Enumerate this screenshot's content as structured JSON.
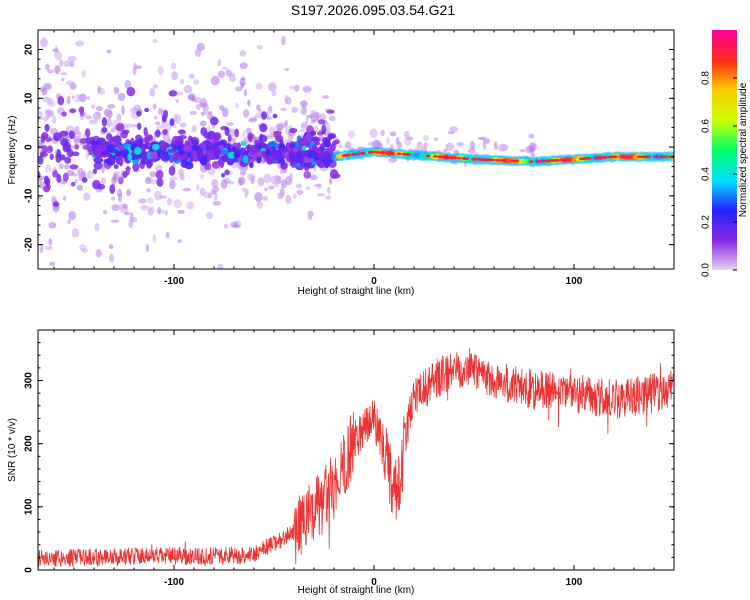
{
  "figure": {
    "title": "S197.2026.095.03.54.G21"
  },
  "chart_data": [
    {
      "type": "heatmap",
      "title": "S197.2026.095.03.54.G21",
      "xlabel": "Height of straight line (km)",
      "ylabel": "Frequency (Hz)",
      "xlim": [
        -168,
        150
      ],
      "ylim": [
        -25,
        24
      ],
      "xticks": [
        -100,
        0,
        100
      ],
      "xtick_labels": [
        "-100",
        "0",
        "100"
      ],
      "yticks": [
        20,
        10,
        0,
        -10,
        -20
      ],
      "ytick_labels": [
        "20",
        "10",
        "0",
        "-10",
        "-20"
      ],
      "colorbar": {
        "label": "Normalized spectral amplitude",
        "range": [
          0,
          1
        ],
        "ticks": [
          0.0,
          0.2,
          0.4,
          0.6,
          0.8
        ],
        "tick_labels": [
          "0.0",
          "0.2",
          "0.4",
          "0.6",
          "0.8"
        ],
        "colors": [
          "#e6d2f5",
          "#8a2be2",
          "#2222ff",
          "#00e0ff",
          "#00ff66",
          "#ccff00",
          "#ffcc00",
          "#ff2a1a",
          "#ff0099"
        ]
      },
      "ridge": {
        "description_points_x": [
          -160,
          -120,
          -60,
          -20,
          0,
          50,
          80,
          120,
          150
        ],
        "frequency_hz": [
          0,
          -1,
          -1,
          -2,
          -1,
          -2.5,
          -3,
          -2,
          -2
        ]
      }
    },
    {
      "type": "line",
      "xlabel": "Height of straight line (km)",
      "ylabel": "SNR (10 * v/v)",
      "xlim": [
        -168,
        150
      ],
      "ylim": [
        0,
        380
      ],
      "xticks": [
        -100,
        0,
        100
      ],
      "xtick_labels": [
        "-100",
        "0",
        "100"
      ],
      "yticks": [
        0,
        100,
        200,
        300
      ],
      "ytick_labels": [
        "0",
        "100",
        "200",
        "300"
      ],
      "series": [
        {
          "name": "SNR",
          "color": "#ee3333",
          "trend_x": [
            -168,
            -120,
            -80,
            -60,
            -40,
            -30,
            -20,
            -12,
            -5,
            0,
            5,
            10,
            13,
            16,
            20,
            30,
            40,
            50,
            60,
            80,
            100,
            120,
            150
          ],
          "trend_y": [
            18,
            22,
            22,
            25,
            60,
            90,
            130,
            190,
            230,
            240,
            190,
            120,
            140,
            220,
            270,
            300,
            320,
            320,
            300,
            285,
            280,
            270,
            285
          ]
        }
      ]
    }
  ]
}
